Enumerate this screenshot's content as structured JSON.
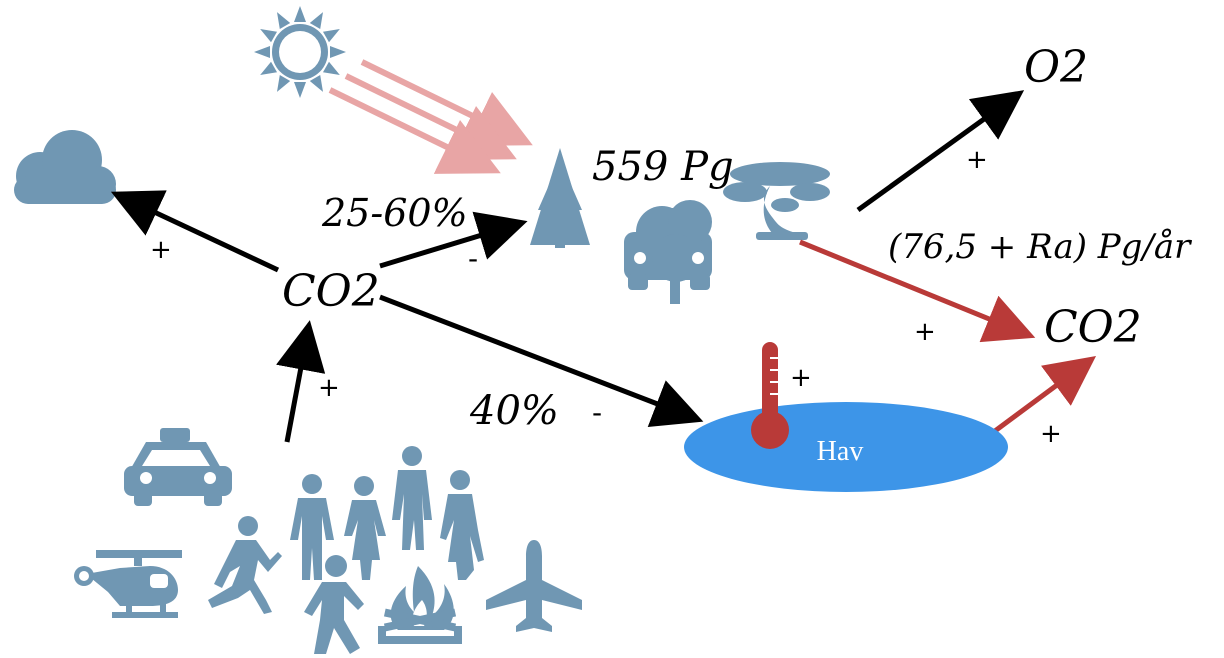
{
  "colors": {
    "icon": "#7097b3",
    "sun_arrows": "#e8a5a5",
    "red_arrow": "#b93a38",
    "ocean": "#3d95e8",
    "thermometer": "#b93a38",
    "black_arrow": "#000000"
  },
  "labels": {
    "co2_center": "CO2",
    "co2_right": "CO2",
    "o2": "O2",
    "forest_stock": "559 Pg",
    "forest_flux": "(76,5 + Ra) Pg/år",
    "share_forest": "25-60%",
    "share_ocean": "40%",
    "ocean": "Hav"
  },
  "signs": {
    "to_cloud": "+",
    "to_forest": "-",
    "emissions": "+",
    "to_ocean": "-",
    "thermometer": "+",
    "forest_to_o2": "+",
    "forest_to_co2": "+",
    "ocean_to_co2": "+"
  },
  "icons": [
    "sun-icon",
    "cloud-icon",
    "pine-tree-icon",
    "bonsai-tree-icon",
    "car-tree-icon",
    "thermometer-icon",
    "taxi-icon",
    "helicopter-icon",
    "runner-icon",
    "people-group-icon",
    "walker-icon",
    "campfire-icon",
    "airplane-icon"
  ]
}
